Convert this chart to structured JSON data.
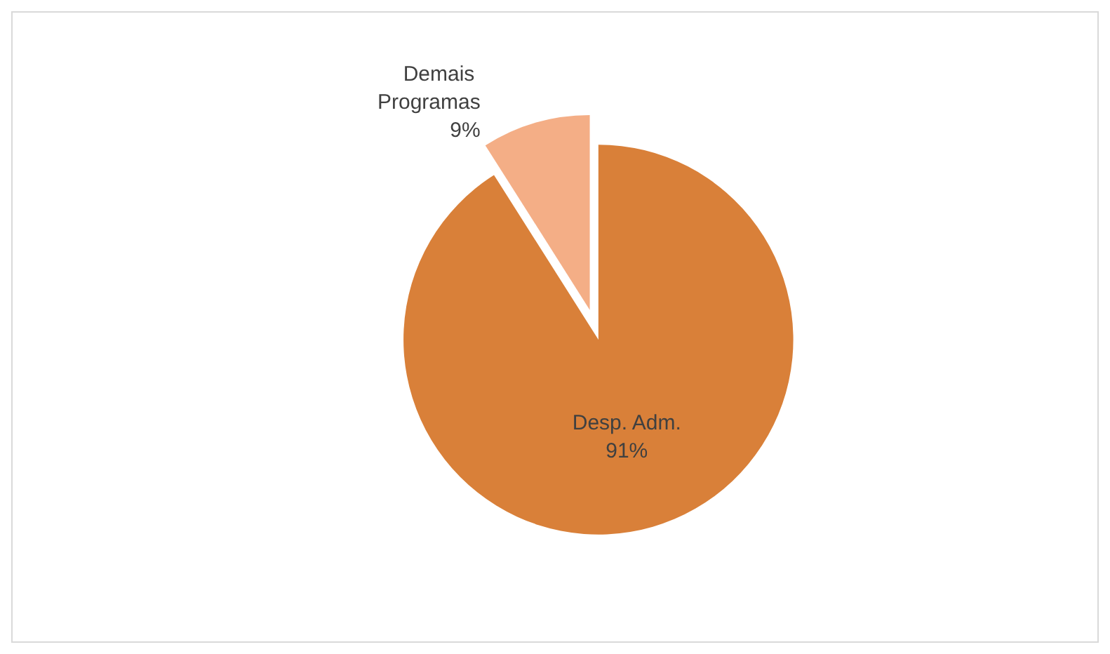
{
  "chart_data": {
    "type": "pie",
    "categories": [
      "Demais Programas",
      "Desp. Adm."
    ],
    "values": [
      9,
      91
    ],
    "colors": [
      "#f4ae86",
      "#d98039"
    ],
    "value_labels": [
      "9%",
      "91%"
    ],
    "legend": false
  }
}
